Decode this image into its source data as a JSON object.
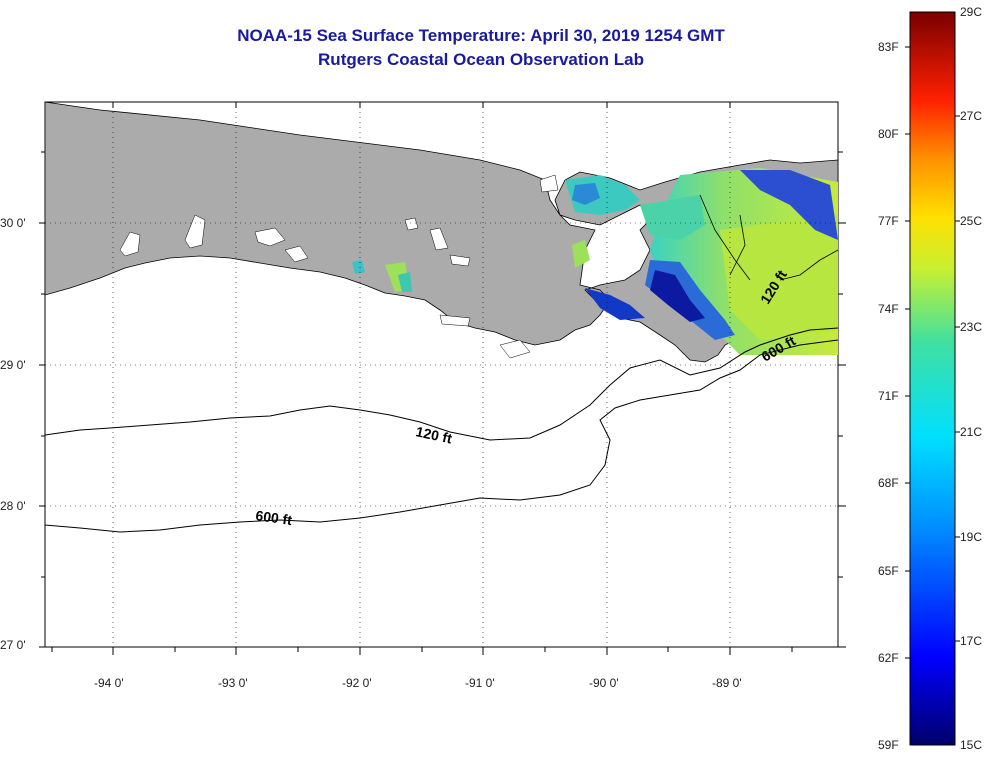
{
  "title": {
    "line1": "NOAA-15 Sea Surface Temperature:  April 30, 2019 1254 GMT",
    "line2": "Rutgers Coastal Ocean Observation Lab"
  },
  "map": {
    "lat_labels": [
      "30 0'",
      "29 0'",
      "28 0'",
      "27 0'"
    ],
    "lon_labels": [
      "-94 0'",
      "-93 0'",
      "-92 0'",
      "-91 0'",
      "-90 0'",
      "-89 0'"
    ],
    "contours": [
      {
        "label": "120 ft"
      },
      {
        "label": "600 ft"
      },
      {
        "label": "120 ft"
      },
      {
        "label": "600 ft"
      }
    ],
    "colors": {
      "land": "#ababab",
      "ocean": "#ffffff",
      "cold": "#0a1b9a",
      "warm": "#c8e83a"
    }
  },
  "colorbar": {
    "fahrenheit": [
      "83F",
      "80F",
      "77F",
      "74F",
      "71F",
      "68F",
      "65F",
      "62F",
      "59F"
    ],
    "celsius": [
      "29C",
      "27C",
      "25C",
      "23C",
      "21C",
      "19C",
      "17C",
      "15C"
    ]
  }
}
